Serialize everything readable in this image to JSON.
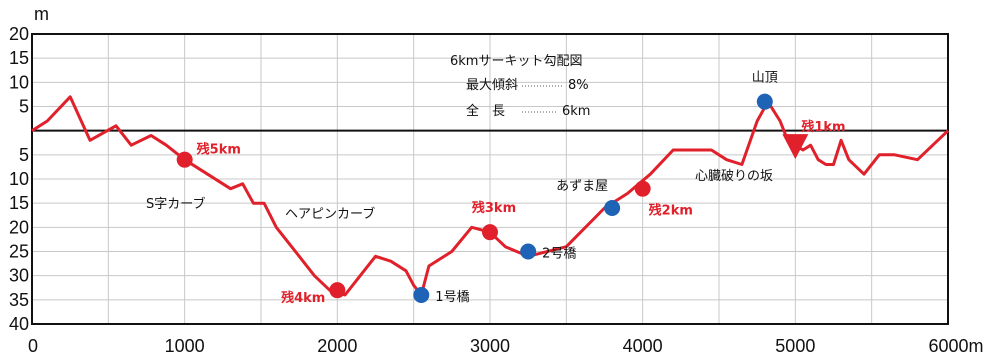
{
  "chart_data": {
    "type": "line",
    "unit_label": "m",
    "x_unit_suffix": "m",
    "xlim": [
      0,
      6000
    ],
    "ylim": [
      -40,
      20
    ],
    "x_ticks": [
      {
        "value": 0,
        "label": "0"
      },
      {
        "value": 1000,
        "label": "1000"
      },
      {
        "value": 2000,
        "label": "2000"
      },
      {
        "value": 3000,
        "label": "3000"
      },
      {
        "value": 4000,
        "label": "4000"
      },
      {
        "value": 5000,
        "label": "5000"
      },
      {
        "value": 6000,
        "label": "6000m"
      }
    ],
    "y_ticks": [
      {
        "value": 20,
        "label": "20"
      },
      {
        "value": 15,
        "label": "15"
      },
      {
        "value": 10,
        "label": "10"
      },
      {
        "value": 5,
        "label": "5"
      },
      {
        "value": -5,
        "label": "5"
      },
      {
        "value": -10,
        "label": "10"
      },
      {
        "value": -15,
        "label": "15"
      },
      {
        "value": -20,
        "label": "20"
      },
      {
        "value": -25,
        "label": "25"
      },
      {
        "value": -30,
        "label": "30"
      },
      {
        "value": -35,
        "label": "35"
      },
      {
        "value": -40,
        "label": "40"
      }
    ],
    "grid": true,
    "line_color": "#e0202a",
    "profile": {
      "x": [
        0,
        100,
        250,
        380,
        550,
        650,
        780,
        880,
        1000,
        1150,
        1300,
        1380,
        1450,
        1520,
        1600,
        1750,
        1850,
        1950,
        2050,
        2150,
        2250,
        2350,
        2450,
        2500,
        2550,
        2600,
        2750,
        2880,
        3000,
        3100,
        3250,
        3500,
        3750,
        3900,
        4050,
        4200,
        4300,
        4450,
        4550,
        4650,
        4750,
        4820,
        4900,
        4950,
        5050,
        5100,
        5150,
        5200,
        5250,
        5300,
        5350,
        5450,
        5550,
        5650,
        5800,
        5900,
        6000
      ],
      "y": [
        0,
        2,
        7,
        -2,
        1,
        -3,
        -1,
        -3,
        -6,
        -9,
        -12,
        -11,
        -15,
        -15,
        -20,
        -26,
        -30,
        -33,
        -34,
        -30,
        -26,
        -27,
        -29,
        -32,
        -34,
        -28,
        -25,
        -20,
        -21,
        -24,
        -26,
        -24,
        -16,
        -13,
        -9,
        -4,
        -4,
        -4,
        -6,
        -7,
        2,
        6,
        2,
        -2,
        -4,
        -3,
        -6,
        -7,
        -7,
        -2,
        -6,
        -9,
        -5,
        -5,
        -6,
        -3,
        0
      ]
    },
    "markers": [
      {
        "x": 1000,
        "y": -6,
        "color": "#e0202a",
        "shape": "circle",
        "label": "残5km",
        "label_color": "#e0202a"
      },
      {
        "x": 2000,
        "y": -33,
        "color": "#e0202a",
        "shape": "circle",
        "label": "残4km",
        "label_color": "#e0202a"
      },
      {
        "x": 2550,
        "y": -34,
        "color": "#1f63b6",
        "shape": "circle",
        "label": "1号橋",
        "label_color": "#111111"
      },
      {
        "x": 3000,
        "y": -21,
        "color": "#e0202a",
        "shape": "circle",
        "label": "残3km",
        "label_color": "#e0202a"
      },
      {
        "x": 3250,
        "y": -25,
        "color": "#1f63b6",
        "shape": "circle",
        "label": "2号橋",
        "label_color": "#111111"
      },
      {
        "x": 3800,
        "y": -16,
        "color": "#1f63b6",
        "shape": "circle",
        "label": "あずま屋",
        "label_color": "#111111"
      },
      {
        "x": 4000,
        "y": -12,
        "color": "#e0202a",
        "shape": "circle",
        "label": "残2km",
        "label_color": "#e0202a"
      },
      {
        "x": 4800,
        "y": 6,
        "color": "#1f63b6",
        "shape": "circle",
        "label": "山頂",
        "label_color": "#111111"
      },
      {
        "x": 5000,
        "y": -3,
        "color": "#e0202a",
        "shape": "triangle-down",
        "label": "残1km",
        "label_color": "#e0202a"
      }
    ],
    "annotations": [
      {
        "text": "S字カーブ"
      },
      {
        "text": "ヘアピンカーブ"
      },
      {
        "text": "心臓破りの坂"
      }
    ],
    "info_box": {
      "title": "6kmサーキット勾配図",
      "grade_label": "最大傾斜",
      "grade_value": "8%",
      "length_label": "全　長",
      "length_value": "6km"
    }
  }
}
